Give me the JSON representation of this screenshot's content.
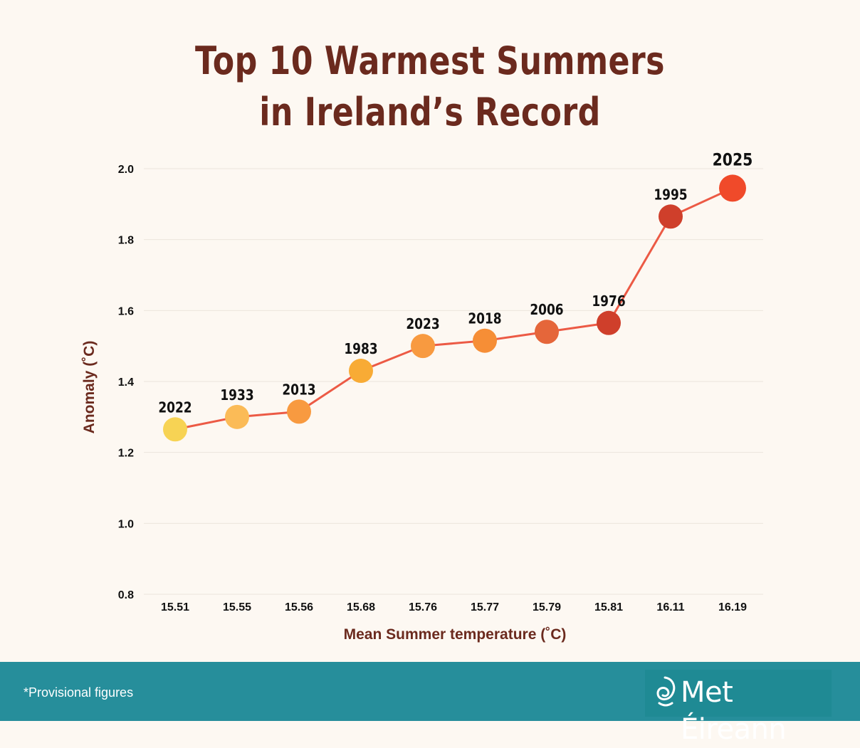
{
  "title": {
    "line1": "Top 10 Warmest Summers",
    "line2": "in Ireland’s Record"
  },
  "chart_data": {
    "type": "line",
    "xlabel": "Mean Summer temperature (˚C)",
    "ylabel": "Anomaly (˚C)",
    "ylim": [
      0.8,
      2.0
    ],
    "yticks": [
      "0.8",
      "1.0",
      "1.2",
      "1.4",
      "1.6",
      "1.8",
      "2.0"
    ],
    "grid": true,
    "x": [
      "15.51",
      "15.55",
      "15.56",
      "15.68",
      "15.76",
      "15.77",
      "15.79",
      "15.81",
      "16.11",
      "16.19"
    ],
    "values": [
      1.265,
      1.3,
      1.315,
      1.43,
      1.5,
      1.515,
      1.54,
      1.565,
      1.865,
      1.945
    ],
    "point_labels": [
      "2022",
      "1933",
      "2013",
      "1983",
      "2023",
      "2018",
      "2006",
      "1976",
      "1995",
      "2025"
    ],
    "point_colors": [
      "#f7d354",
      "#fbbb57",
      "#f89a40",
      "#f8ab35",
      "#f89a40",
      "#f68e36",
      "#e5663a",
      "#cf3f2b",
      "#cf3f2b",
      "#f04a2a"
    ],
    "line_color": "#ec5a45"
  },
  "footer": {
    "note": "*Provisional figures",
    "logo_text": "Met Éireann",
    "logo_icon": "met-eireann-swirl-icon"
  }
}
